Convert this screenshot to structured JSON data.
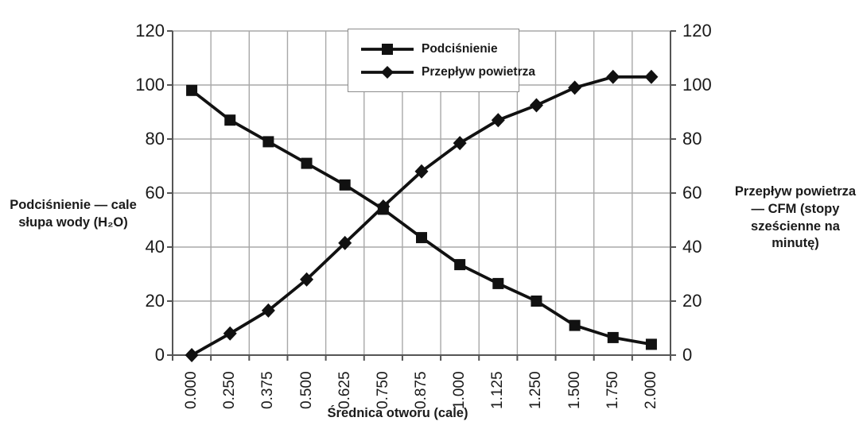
{
  "chart_data": {
    "type": "line",
    "title": "",
    "xlabel": "Średnica otworu (cale)",
    "left_axis_label_lines": [
      "Podciśnienie — cale",
      "słupa wody (H₂O)"
    ],
    "right_axis_label_lines": [
      "Przepływ powietrza",
      "— CFM (stopy",
      "sześcienne na",
      "minutę)"
    ],
    "categories": [
      "0.000",
      "0.250",
      "0.375",
      "0.500",
      "0.625",
      "0.750",
      "0.875",
      "1.000",
      "1.125",
      "1.250",
      "1.500",
      "1.750",
      "2.000"
    ],
    "series": [
      {
        "name": "Podciśnienie",
        "marker": "square",
        "values": [
          98,
          87,
          79,
          71,
          63,
          54,
          43.5,
          33.5,
          26.5,
          20,
          11,
          6.5,
          4
        ]
      },
      {
        "name": "Przepływ powietrza",
        "marker": "diamond",
        "values": [
          0,
          8,
          16.5,
          28,
          41.5,
          55,
          68,
          78.5,
          87,
          92.5,
          99,
          103,
          103
        ]
      }
    ],
    "y_ticks": [
      0,
      20,
      40,
      60,
      80,
      100,
      120
    ],
    "ylim": [
      0,
      120
    ],
    "grid": true,
    "legend_position": "top-center",
    "colors": {
      "series": "#111111",
      "grid": "#a8a8a8",
      "axis": "#555555",
      "legend_border": "#8c8c8c",
      "background": "#ffffff",
      "text": "#1a1a1a"
    }
  }
}
